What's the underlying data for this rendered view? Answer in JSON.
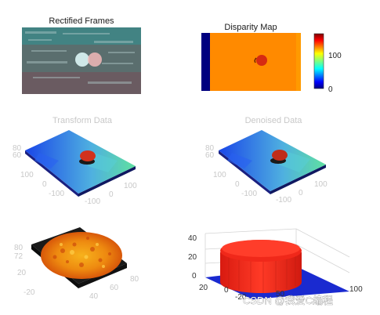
{
  "chart_data": [
    {
      "type": "image",
      "title": "Rectified Frames",
      "description_colors": [
        "#1e8c8c",
        "#c04040",
        "#6a6a6a"
      ]
    },
    {
      "type": "heatmap",
      "title": "Disparity Map",
      "colorbar": {
        "ticks": [
          0,
          100
        ],
        "range": [
          0,
          160
        ],
        "colormap": "jet"
      },
      "colors": {
        "background": "#ff8a00",
        "edge_left": "#00007f",
        "edge_right": "#ff9a00",
        "object": "#d62a12"
      }
    },
    {
      "type": "surface3d",
      "title": "Transform Data",
      "xticks": [
        -100,
        0,
        100
      ],
      "yticks": [
        -100,
        0,
        100
      ],
      "zticks": [
        60,
        80
      ],
      "colors": {
        "low": "#1a46e8",
        "mid": "#4fb0e0",
        "high": "#5fe0a0",
        "object": "#d2321c"
      }
    },
    {
      "type": "surface3d",
      "title": "Denoised Data",
      "xticks": [
        -100,
        0,
        100
      ],
      "yticks": [
        -100,
        0,
        100
      ],
      "zticks": [
        60,
        80
      ],
      "colors": {
        "low": "#1a46e8",
        "mid": "#4fb0e0",
        "high": "#5fe0a0",
        "object": "#c02c1a"
      }
    },
    {
      "type": "surface3d",
      "title": "",
      "xticks": [
        40,
        60,
        80
      ],
      "yticks": [
        -20,
        20
      ],
      "zticks": [
        72,
        80
      ],
      "colors": {
        "base": "#e86a00",
        "light": "#f7b21c",
        "dark": "#c02c10"
      }
    },
    {
      "type": "surface3d",
      "title": "",
      "xticks": [
        50,
        100
      ],
      "yticks": [
        -20,
        0,
        20
      ],
      "zticks": [
        0,
        20,
        40
      ],
      "colors": {
        "cylinder": "#f0281a",
        "floor": "#1a2ad0"
      }
    }
  ],
  "watermark": "CSDN @我爱C编程"
}
